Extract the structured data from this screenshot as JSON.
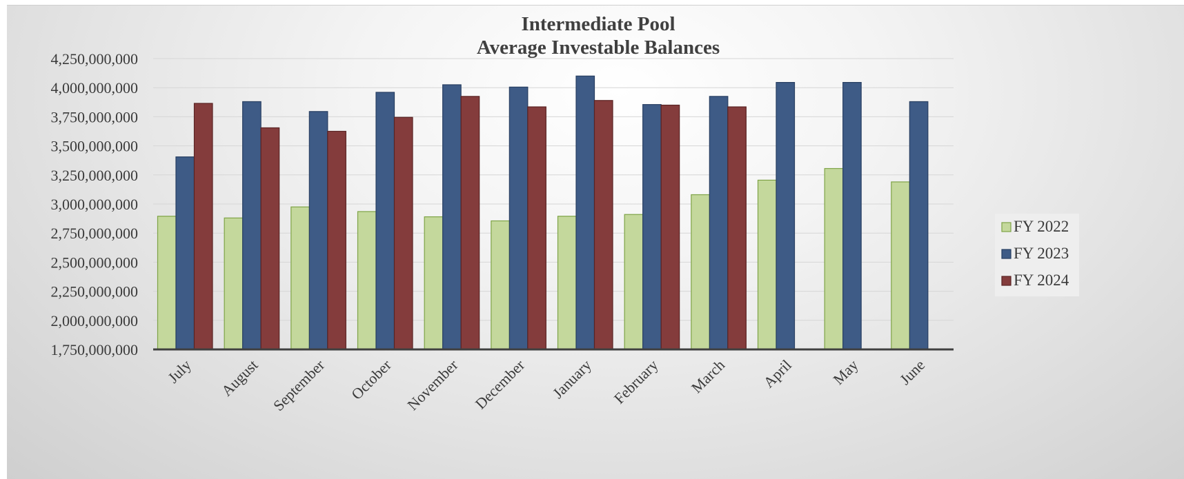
{
  "chart_data": {
    "type": "bar",
    "title": "Intermediate Pool",
    "subtitle": "Average Investable Balances",
    "xlabel": "",
    "ylabel": "",
    "categories": [
      "July",
      "August",
      "September",
      "October",
      "November",
      "December",
      "January",
      "February",
      "March",
      "April",
      "May",
      "June"
    ],
    "series": [
      {
        "name": "FY 2022",
        "color": "#c4d89c",
        "edge": "#7ea346",
        "values": [
          2895000000,
          2880000000,
          2975000000,
          2935000000,
          2890000000,
          2855000000,
          2895000000,
          2910000000,
          3080000000,
          3205000000,
          3305000000,
          3190000000
        ]
      },
      {
        "name": "FY 2023",
        "color": "#3e5b86",
        "edge": "#283f62",
        "values": [
          3405000000,
          3880000000,
          3795000000,
          3960000000,
          4025000000,
          4005000000,
          4100000000,
          3855000000,
          3925000000,
          4045000000,
          4045000000,
          3880000000
        ]
      },
      {
        "name": "FY 2024",
        "color": "#843c3c",
        "edge": "#5a2323",
        "values": [
          3865000000,
          3655000000,
          3625000000,
          3745000000,
          3925000000,
          3835000000,
          3890000000,
          3850000000,
          3835000000,
          null,
          null,
          null
        ]
      }
    ],
    "ylim": [
      1750000000,
      4250000000
    ],
    "ytick_labels": [
      "4,250,000,000",
      "4,000,000,000",
      "3,750,000,000",
      "3,500,000,000",
      "3,250,000,000",
      "3,000,000,000",
      "2,750,000,000",
      "2,500,000,000",
      "2,250,000,000",
      "2,000,000,000",
      "1,750,000,000"
    ],
    "grid": true,
    "legend_position": "right"
  }
}
